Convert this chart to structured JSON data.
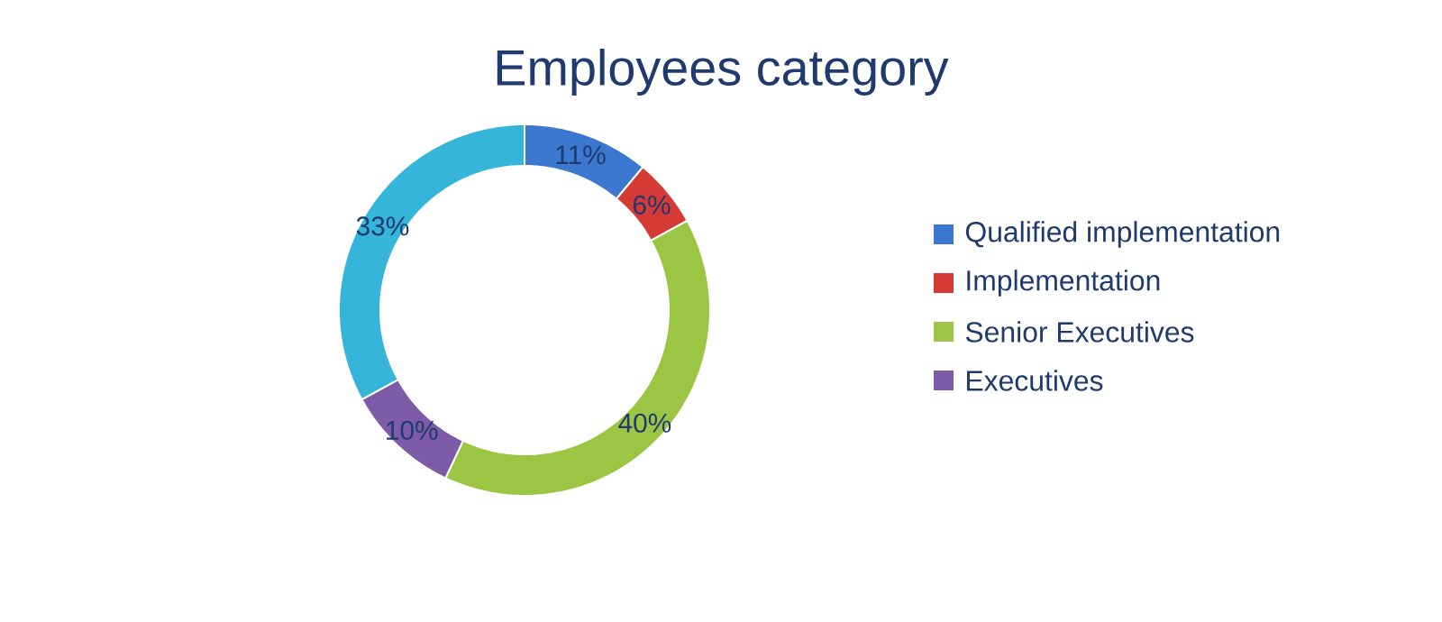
{
  "chart_data": {
    "type": "donut",
    "title": "Employees category",
    "categories": [
      "Qualified implementation",
      "Implementation",
      "Senior Executives",
      "Executives",
      null
    ],
    "values": [
      11,
      6,
      40,
      10,
      33
    ],
    "value_labels": [
      "11%",
      "6%",
      "40%",
      "10%",
      "33%"
    ],
    "colors": [
      "#3c78d0",
      "#d63a34",
      "#9bc643",
      "#7d5ba6",
      "#35b5d9"
    ],
    "legend": "right"
  }
}
